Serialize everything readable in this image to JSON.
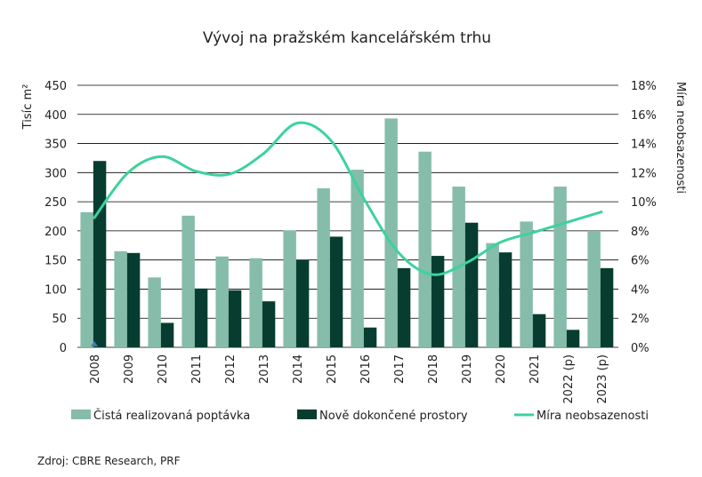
{
  "chart_data": {
    "type": "bar",
    "title": "Vývoj na pražském kancelářském trhu",
    "y_left_label": "Tisíc m²",
    "y_right_label": "Míra neobsazenosti",
    "categories": [
      "2008",
      "2009",
      "2010",
      "2011",
      "2012",
      "2013",
      "2014",
      "2015",
      "2016",
      "2017",
      "2018",
      "2019",
      "2020",
      "2021",
      "2022 (p)",
      "2023 (p)"
    ],
    "y_left_ticks": [
      "0",
      "50",
      "100",
      "150",
      "200",
      "250",
      "300",
      "350",
      "400",
      "450"
    ],
    "y_right_ticks": [
      "0%",
      "2%",
      "4%",
      "6%",
      "8%",
      "10%",
      "12%",
      "14%",
      "16%",
      "18%"
    ],
    "y_left_lim": [
      0,
      450
    ],
    "y_right_lim": [
      0,
      18
    ],
    "grid": "horizontal",
    "legend_position": "bottom",
    "series": [
      {
        "name": "Čistá realizovaná poptávka",
        "kind": "bar",
        "axis": "left",
        "color": "#86bcaa",
        "values": [
          232,
          165,
          120,
          226,
          156,
          153,
          201,
          273,
          305,
          393,
          336,
          276,
          179,
          216,
          276,
          200
        ]
      },
      {
        "name": "Nově dokončené prostory",
        "kind": "bar",
        "axis": "left",
        "color": "#073d31",
        "values": [
          320,
          162,
          42,
          101,
          98,
          79,
          150,
          190,
          34,
          136,
          157,
          214,
          163,
          57,
          30,
          136
        ]
      },
      {
        "name": "Míra neobsazenosti",
        "kind": "line",
        "axis": "right",
        "color": "#3dd29c",
        "values": [
          8.9,
          12.0,
          13.1,
          12.1,
          11.9,
          13.3,
          15.4,
          14.2,
          10.1,
          6.5,
          5.0,
          5.8,
          7.2,
          7.9,
          8.6,
          9.3
        ]
      }
    ]
  },
  "source_note": "Zdroj: CBRE Research, PRF"
}
